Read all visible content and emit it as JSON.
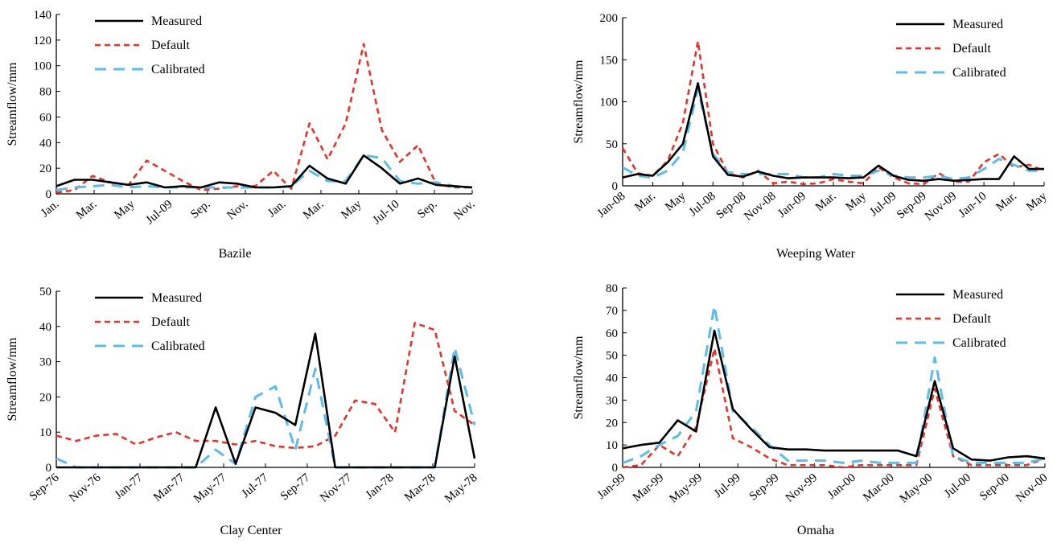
{
  "colors": {
    "measured": "#000000",
    "default": "#e8322a",
    "calibrated": "#5bbde8"
  },
  "chart_data": [
    {
      "type": "line",
      "caption": "Bazile",
      "ylabel": "Streamflow/mm",
      "ylim": [
        0,
        140
      ],
      "yticks": [
        0,
        20,
        40,
        60,
        80,
        100,
        120,
        140
      ],
      "x_tick_labels": [
        "Jan.",
        "Mar.",
        "May",
        "Jul-09",
        "Sep.",
        "Nov.",
        "Jan.",
        "Mar.",
        "May",
        "Jul-10",
        "Sep.",
        "Nov."
      ],
      "legend": [
        "Measured",
        "Default",
        "Calibrated"
      ],
      "legend_position": "top-left",
      "n_points": 24,
      "series": [
        {
          "name": "Measured",
          "style": "solid",
          "values": [
            6,
            11,
            11,
            9,
            7,
            9,
            5,
            6,
            5,
            9,
            8,
            5,
            5,
            6,
            22,
            12,
            8,
            30,
            20,
            8,
            12,
            7,
            6,
            5
          ]
        },
        {
          "name": "Default",
          "style": "dashed",
          "values": [
            1,
            3,
            14,
            9,
            7,
            26,
            18,
            10,
            3,
            4,
            6,
            6,
            18,
            4,
            55,
            27,
            55,
            117,
            50,
            25,
            38,
            8,
            5,
            5
          ]
        },
        {
          "name": "Calibrated",
          "style": "longdash",
          "values": [
            3,
            5,
            6,
            7,
            5,
            6,
            5,
            5,
            5,
            5,
            5,
            5,
            5,
            6,
            18,
            10,
            10,
            30,
            28,
            10,
            8,
            9,
            6,
            5
          ]
        }
      ]
    },
    {
      "type": "line",
      "caption": "Weeping Water",
      "ylabel": "Streamflow/mm",
      "ylim": [
        0,
        200
      ],
      "yticks": [
        0,
        50,
        100,
        150,
        200
      ],
      "x_tick_labels": [
        "Jan-08",
        "Mar.",
        "May",
        "Jul-08",
        "Sep-08",
        "Nov-08",
        "Jan-09",
        "Mar.",
        "May",
        "Jul-09",
        "Sep-09",
        "Nov-09",
        "Jan-10",
        "Mar.",
        "May"
      ],
      "legend": [
        "Measured",
        "Default",
        "Calibrated"
      ],
      "legend_position": "top-right",
      "n_points": 29,
      "series": [
        {
          "name": "Measured",
          "style": "solid",
          "values": [
            10,
            14,
            12,
            28,
            50,
            122,
            35,
            13,
            11,
            17,
            12,
            9,
            10,
            10,
            10,
            9,
            10,
            24,
            12,
            7,
            6,
            8,
            6,
            7,
            8,
            8,
            35,
            20,
            20
          ]
        },
        {
          "name": "Default",
          "style": "dashed",
          "values": [
            45,
            15,
            12,
            30,
            75,
            172,
            50,
            15,
            10,
            18,
            3,
            5,
            2,
            3,
            8,
            5,
            3,
            22,
            10,
            3,
            2,
            15,
            5,
            5,
            28,
            38,
            22,
            25,
            18
          ]
        },
        {
          "name": "Calibrated",
          "style": "longdash",
          "values": [
            22,
            12,
            10,
            18,
            40,
            115,
            38,
            16,
            14,
            14,
            14,
            14,
            10,
            10,
            14,
            12,
            12,
            18,
            12,
            10,
            10,
            12,
            8,
            10,
            20,
            32,
            25,
            18,
            18
          ]
        }
      ]
    },
    {
      "type": "line",
      "caption": "Clay Center",
      "ylabel": "Streamflow/mm",
      "ylim": [
        0,
        50
      ],
      "yticks": [
        0,
        10,
        20,
        30,
        40,
        50
      ],
      "x_tick_labels": [
        "Sep-76",
        "Nov-76",
        "Jan-77",
        "Mar-77",
        "May-77",
        "Jul-77",
        "Sep-77",
        "Nov-77",
        "Jan-78",
        "Mar-78",
        "May-78"
      ],
      "legend": [
        "Measured",
        "Default",
        "Calibrated"
      ],
      "legend_position": "top-left",
      "n_points": 22,
      "series": [
        {
          "name": "Measured",
          "style": "solid",
          "values": [
            0,
            0,
            0,
            0,
            0,
            0,
            0,
            0,
            17,
            1,
            17,
            15.5,
            12,
            38,
            0,
            0,
            0,
            0,
            0,
            0,
            31.5,
            2.5
          ]
        },
        {
          "name": "Default",
          "style": "dashed",
          "values": [
            9,
            7.5,
            9,
            9.5,
            6.5,
            8.5,
            10,
            7.5,
            7.5,
            6.5,
            7.5,
            6,
            5.5,
            6,
            9,
            19,
            18,
            10,
            41,
            39,
            16,
            12
          ]
        },
        {
          "name": "Calibrated",
          "style": "longdash",
          "values": [
            2.5,
            0,
            0,
            0,
            0,
            0,
            0,
            0,
            5,
            1,
            20,
            23,
            5,
            28,
            0,
            0,
            0,
            0,
            0,
            0,
            34,
            12
          ]
        }
      ]
    },
    {
      "type": "line",
      "caption": "Omaha",
      "ylabel": "Streamflow/mm",
      "ylim": [
        0,
        80
      ],
      "yticks": [
        0,
        10,
        20,
        30,
        40,
        50,
        60,
        70,
        80
      ],
      "x_tick_labels": [
        "Jan-99",
        "Mar-99",
        "May-99",
        "Jul-99",
        "Sep-99",
        "Nov-99",
        "Jan-00",
        "Mar-00",
        "May-00",
        "Jul-00",
        "Sep-00",
        "Nov-00"
      ],
      "legend": [
        "Measured",
        "Default",
        "Calibrated"
      ],
      "legend_position": "top-right",
      "n_points": 24,
      "series": [
        {
          "name": "Measured",
          "style": "solid",
          "values": [
            8.5,
            10,
            11,
            21,
            16,
            61,
            26,
            17,
            9,
            8,
            8,
            7.5,
            7.5,
            7.5,
            7.5,
            7.5,
            5,
            38.5,
            8.5,
            3.5,
            3,
            4.5,
            5,
            4
          ]
        },
        {
          "name": "Default",
          "style": "dashed",
          "values": [
            0,
            1,
            10,
            5,
            18,
            53,
            13,
            9,
            4,
            1,
            1,
            1,
            0,
            1,
            1,
            1,
            1,
            35,
            5,
            1,
            1,
            1,
            1,
            4
          ]
        },
        {
          "name": "Calibrated",
          "style": "longdash",
          "values": [
            2,
            5,
            10,
            14,
            25,
            72,
            25,
            18,
            10,
            3,
            3,
            3,
            2,
            3,
            2,
            2,
            2,
            49,
            5,
            2,
            2,
            2,
            2,
            4
          ]
        }
      ]
    }
  ]
}
